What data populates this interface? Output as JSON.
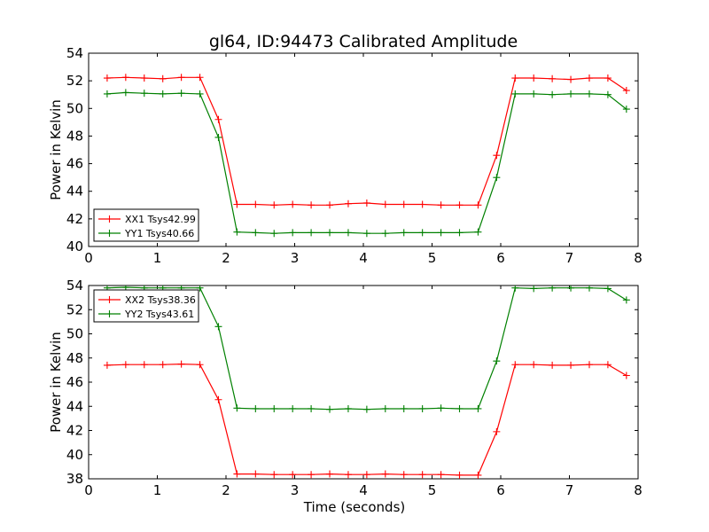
{
  "figure": {
    "title": "gl64, ID:94473 Calibrated Amplitude"
  },
  "chart_data": [
    {
      "type": "line",
      "ylabel": "Power in Kelvin",
      "xlabel": "",
      "xlim": [
        0,
        8
      ],
      "ylim": [
        40,
        54
      ],
      "xticks": [
        0,
        1,
        2,
        3,
        4,
        5,
        6,
        7,
        8
      ],
      "yticks": [
        40,
        42,
        44,
        46,
        48,
        50,
        52,
        54
      ],
      "grid": false,
      "legend_position": "lower-left",
      "x": [
        0.27,
        0.54,
        0.81,
        1.08,
        1.35,
        1.62,
        1.89,
        2.16,
        2.43,
        2.7,
        2.97,
        3.24,
        3.51,
        3.78,
        4.05,
        4.32,
        4.59,
        4.86,
        5.13,
        5.4,
        5.67,
        5.94,
        6.21,
        6.48,
        6.75,
        7.02,
        7.29,
        7.56,
        7.83
      ],
      "series": [
        {
          "name": "XX1 Tsys42.99",
          "color": "#ff0000",
          "values": [
            52.2,
            52.25,
            52.2,
            52.15,
            52.25,
            52.25,
            49.2,
            43.05,
            43.05,
            43.0,
            43.05,
            43.0,
            43.0,
            43.1,
            43.15,
            43.05,
            43.05,
            43.05,
            43.0,
            43.0,
            43.0,
            46.6,
            52.2,
            52.2,
            52.15,
            52.1,
            52.2,
            52.2,
            51.3
          ]
        },
        {
          "name": "YY1 Tsys40.66",
          "color": "#008000",
          "values": [
            51.05,
            51.15,
            51.1,
            51.05,
            51.1,
            51.05,
            47.9,
            41.05,
            41.0,
            40.95,
            41.0,
            41.0,
            41.0,
            41.0,
            40.95,
            40.95,
            41.0,
            41.0,
            41.0,
            41.0,
            41.05,
            45.0,
            51.05,
            51.05,
            51.0,
            51.05,
            51.05,
            51.0,
            49.95
          ]
        }
      ]
    },
    {
      "type": "line",
      "ylabel": "Power in Kelvin",
      "xlabel": "Time (seconds)",
      "xlim": [
        0,
        8
      ],
      "ylim": [
        38,
        54
      ],
      "xticks": [
        0,
        1,
        2,
        3,
        4,
        5,
        6,
        7,
        8
      ],
      "yticks": [
        38,
        40,
        42,
        44,
        46,
        48,
        50,
        52,
        54
      ],
      "grid": false,
      "legend_position": "top-left",
      "x": [
        0.27,
        0.54,
        0.81,
        1.08,
        1.35,
        1.62,
        1.89,
        2.16,
        2.43,
        2.7,
        2.97,
        3.24,
        3.51,
        3.78,
        4.05,
        4.32,
        4.59,
        4.86,
        5.13,
        5.4,
        5.67,
        5.94,
        6.21,
        6.48,
        6.75,
        7.02,
        7.29,
        7.56,
        7.83
      ],
      "series": [
        {
          "name": "XX2 Tsys38.36",
          "color": "#ff0000",
          "values": [
            47.4,
            47.45,
            47.45,
            47.45,
            47.5,
            47.45,
            44.55,
            38.4,
            38.4,
            38.35,
            38.35,
            38.35,
            38.4,
            38.35,
            38.35,
            38.4,
            38.35,
            38.35,
            38.35,
            38.3,
            38.3,
            41.9,
            47.45,
            47.45,
            47.4,
            47.4,
            47.45,
            47.45,
            46.55
          ]
        },
        {
          "name": "YY2 Tsys43.61",
          "color": "#008000",
          "values": [
            53.8,
            53.85,
            53.8,
            53.8,
            53.8,
            53.8,
            50.6,
            43.85,
            43.8,
            43.8,
            43.8,
            43.8,
            43.75,
            43.8,
            43.75,
            43.8,
            43.8,
            43.8,
            43.85,
            43.8,
            43.8,
            47.75,
            53.8,
            53.75,
            53.8,
            53.8,
            53.8,
            53.75,
            52.8
          ]
        }
      ]
    }
  ]
}
